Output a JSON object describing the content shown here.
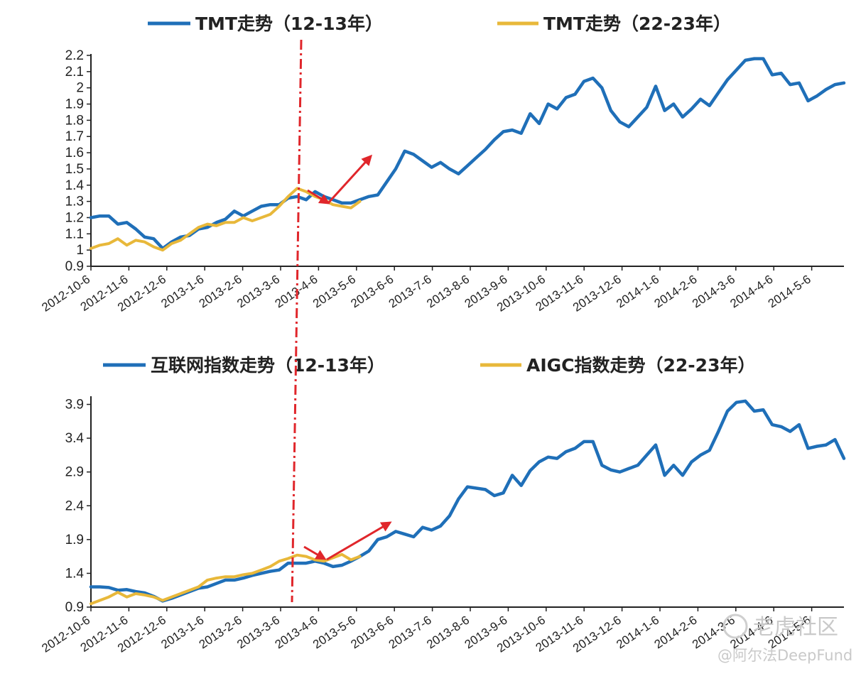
{
  "colors": {
    "series_a": "#1f6fb8",
    "series_b": "#e8b83a",
    "divider": "#e0262b",
    "arrow": "#e0262b",
    "axis": "#222222"
  },
  "chart_data": [
    {
      "type": "line",
      "legend": [
        "TMT走势（12-13年）",
        "TMT走势（22-23年）"
      ],
      "x_tick_labels": [
        "2012-10-6",
        "2012-11-6",
        "2012-12-6",
        "2013-1-6",
        "2013-2-6",
        "2013-3-6",
        "2013-4-6",
        "2013-5-6",
        "2013-6-6",
        "2013-7-6",
        "2013-8-6",
        "2013-9-6",
        "2013-10-6",
        "2013-11-6",
        "2013-12-6",
        "2014-1-6",
        "2014-2-6",
        "2014-3-6",
        "2014-4-6",
        "2014-5-6"
      ],
      "y_tick_labels": [
        "0.9",
        "1",
        "1.1",
        "1.2",
        "1.3",
        "1.4",
        "1.5",
        "1.6",
        "1.7",
        "1.8",
        "1.9",
        "2",
        "2.1",
        "2.2"
      ],
      "ylim": [
        0.9,
        2.2
      ],
      "n_points": 85,
      "series": [
        {
          "name": "TMT走势（12-13年）",
          "values": [
            1.2,
            1.21,
            1.21,
            1.16,
            1.17,
            1.13,
            1.08,
            1.07,
            1.01,
            1.05,
            1.08,
            1.09,
            1.13,
            1.14,
            1.17,
            1.19,
            1.24,
            1.21,
            1.24,
            1.27,
            1.28,
            1.28,
            1.32,
            1.33,
            1.31,
            1.36,
            1.33,
            1.31,
            1.29,
            1.29,
            1.31,
            1.33,
            1.34,
            1.42,
            1.5,
            1.61,
            1.59,
            1.55,
            1.51,
            1.54,
            1.5,
            1.47,
            1.52,
            1.57,
            1.62,
            1.68,
            1.73,
            1.74,
            1.72,
            1.84,
            1.78,
            1.9,
            1.87,
            1.94,
            1.96,
            2.04,
            2.06,
            2.0,
            1.86,
            1.79,
            1.76,
            1.82,
            1.88,
            2.01,
            1.86,
            1.9,
            1.82,
            1.87,
            1.93,
            1.89,
            1.97,
            2.05,
            2.11,
            2.17,
            2.18,
            2.18,
            2.08,
            2.09,
            2.02,
            2.03,
            1.92,
            1.95,
            1.99,
            2.02,
            2.03
          ]
        },
        {
          "name": "TMT走势（22-23年）",
          "values": [
            1.01,
            1.03,
            1.04,
            1.07,
            1.03,
            1.06,
            1.05,
            1.02,
            1.0,
            1.04,
            1.06,
            1.1,
            1.14,
            1.16,
            1.15,
            1.17,
            1.17,
            1.2,
            1.18,
            1.2,
            1.22,
            1.27,
            1.33,
            1.38,
            1.36,
            1.33,
            1.31,
            1.28,
            1.27,
            1.26,
            1.3
          ]
        }
      ],
      "annotations": [
        "dash-dot vertical divider near 2013-4-6",
        "red arrow pointing down",
        "red arrow pointing up"
      ]
    },
    {
      "type": "line",
      "legend": [
        "互联网指数走势（12-13年）",
        "AIGC指数走势（22-23年）"
      ],
      "x_tick_labels": [
        "2012-10-6",
        "2012-11-6",
        "2012-12-6",
        "2013-1-6",
        "2013-2-6",
        "2013-3-6",
        "2013-4-6",
        "2013-5-6",
        "2013-6-6",
        "2013-7-6",
        "2013-8-6",
        "2013-9-6",
        "2013-10-6",
        "2013-11-6",
        "2013-12-6",
        "2014-1-6",
        "2014-2-6",
        "2014-3-6",
        "2014-4-6",
        "2014-5-6"
      ],
      "y_tick_labels": [
        "0.9",
        "1.4",
        "1.9",
        "2.4",
        "2.9",
        "3.4",
        "3.9"
      ],
      "ylim": [
        0.9,
        4.0
      ],
      "n_points": 85,
      "series": [
        {
          "name": "互联网指数走势（12-13年）",
          "values": [
            1.2,
            1.2,
            1.19,
            1.15,
            1.16,
            1.13,
            1.11,
            1.06,
            0.99,
            1.03,
            1.08,
            1.13,
            1.18,
            1.2,
            1.25,
            1.3,
            1.3,
            1.33,
            1.37,
            1.4,
            1.43,
            1.45,
            1.55,
            1.55,
            1.55,
            1.58,
            1.55,
            1.5,
            1.52,
            1.58,
            1.65,
            1.73,
            1.9,
            1.94,
            2.02,
            1.98,
            1.94,
            2.08,
            2.04,
            2.1,
            2.25,
            2.5,
            2.68,
            2.66,
            2.64,
            2.55,
            2.59,
            2.85,
            2.7,
            2.92,
            3.05,
            3.12,
            3.1,
            3.2,
            3.25,
            3.35,
            3.35,
            3.0,
            2.93,
            2.9,
            2.95,
            3.0,
            3.15,
            3.3,
            2.85,
            3.0,
            2.85,
            3.05,
            3.15,
            3.22,
            3.5,
            3.8,
            3.93,
            3.95,
            3.8,
            3.82,
            3.6,
            3.57,
            3.5,
            3.6,
            3.25,
            3.28,
            3.3,
            3.38,
            3.1
          ]
        },
        {
          "name": "AIGC指数走势（22-23年）",
          "values": [
            0.95,
            1.0,
            1.05,
            1.12,
            1.05,
            1.1,
            1.08,
            1.05,
            1.0,
            1.05,
            1.1,
            1.15,
            1.2,
            1.3,
            1.33,
            1.35,
            1.35,
            1.38,
            1.4,
            1.45,
            1.5,
            1.58,
            1.62,
            1.67,
            1.65,
            1.6,
            1.58,
            1.63,
            1.68,
            1.6,
            1.65
          ]
        }
      ],
      "annotations": [
        "dash-dot vertical divider near 2013-4-6",
        "red arrow pointing down",
        "red arrow pointing up"
      ]
    }
  ],
  "watermark": {
    "brand": "老虎社区",
    "handle": "@阿尔法DeepFund"
  }
}
